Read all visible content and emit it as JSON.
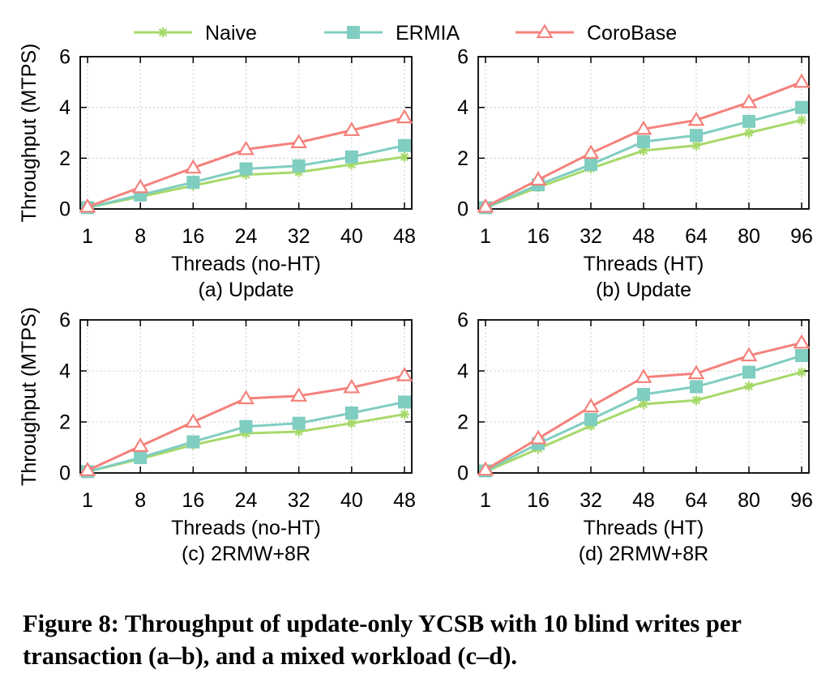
{
  "legend": [
    {
      "name": "Naive",
      "color": "#a6d96a",
      "marker": "star"
    },
    {
      "name": "ERMIA",
      "color": "#80cdc1",
      "marker": "square"
    },
    {
      "name": "CoroBase",
      "color": "#f4817b",
      "marker": "triangle"
    }
  ],
  "caption": "Figure 8: Throughput of update-only YCSB with 10 blind writes per transaction (a–b), and a mixed workload (c–d).",
  "chart_data": [
    {
      "type": "line",
      "title": "(a) Update",
      "xlabel": "Threads (no-HT)",
      "ylabel": "Throughput (MTPS)",
      "categories": [
        "1",
        "8",
        "16",
        "24",
        "32",
        "40",
        "48"
      ],
      "ylim": [
        0,
        6
      ],
      "yticks": [
        0,
        2,
        4,
        6
      ],
      "grid": true,
      "series": [
        {
          "name": "Naive",
          "values": [
            0.05,
            0.48,
            0.92,
            1.35,
            1.45,
            1.75,
            2.05
          ]
        },
        {
          "name": "ERMIA",
          "values": [
            0.05,
            0.55,
            1.05,
            1.58,
            1.7,
            2.05,
            2.5
          ]
        },
        {
          "name": "CoroBase",
          "values": [
            0.08,
            0.85,
            1.62,
            2.35,
            2.62,
            3.1,
            3.6
          ]
        }
      ]
    },
    {
      "type": "line",
      "title": "(b) Update",
      "xlabel": "Threads (HT)",
      "ylabel": "",
      "categories": [
        "1",
        "16",
        "32",
        "48",
        "64",
        "80",
        "96"
      ],
      "ylim": [
        0,
        6
      ],
      "yticks": [
        0,
        2,
        4,
        6
      ],
      "grid": true,
      "series": [
        {
          "name": "Naive",
          "values": [
            0.05,
            0.85,
            1.6,
            2.3,
            2.5,
            3.0,
            3.5
          ]
        },
        {
          "name": "ERMIA",
          "values": [
            0.05,
            0.95,
            1.75,
            2.65,
            2.9,
            3.45,
            4.0
          ]
        },
        {
          "name": "CoroBase",
          "values": [
            0.08,
            1.15,
            2.2,
            3.15,
            3.5,
            4.2,
            5.0
          ]
        }
      ]
    },
    {
      "type": "line",
      "title": "(c) 2RMW+8R",
      "xlabel": "Threads (no-HT)",
      "ylabel": "Throughput (MTPS)",
      "categories": [
        "1",
        "8",
        "16",
        "24",
        "32",
        "40",
        "48"
      ],
      "ylim": [
        0,
        6
      ],
      "yticks": [
        0,
        2,
        4,
        6
      ],
      "grid": true,
      "series": [
        {
          "name": "Naive",
          "values": [
            0.05,
            0.55,
            1.1,
            1.55,
            1.62,
            1.95,
            2.3
          ]
        },
        {
          "name": "ERMIA",
          "values": [
            0.05,
            0.6,
            1.22,
            1.82,
            1.95,
            2.35,
            2.78
          ]
        },
        {
          "name": "CoroBase",
          "values": [
            0.1,
            1.05,
            2.0,
            2.92,
            3.02,
            3.35,
            3.82
          ]
        }
      ]
    },
    {
      "type": "line",
      "title": "(d) 2RMW+8R",
      "xlabel": "Threads (HT)",
      "ylabel": "",
      "categories": [
        "1",
        "16",
        "32",
        "48",
        "64",
        "80",
        "96"
      ],
      "ylim": [
        0,
        6
      ],
      "yticks": [
        0,
        2,
        4,
        6
      ],
      "grid": true,
      "series": [
        {
          "name": "Naive",
          "values": [
            0.05,
            0.95,
            1.85,
            2.7,
            2.85,
            3.4,
            3.95
          ]
        },
        {
          "name": "ERMIA",
          "values": [
            0.08,
            1.15,
            2.1,
            3.08,
            3.38,
            3.95,
            4.6
          ]
        },
        {
          "name": "CoroBase",
          "values": [
            0.12,
            1.35,
            2.6,
            3.75,
            3.9,
            4.6,
            5.1
          ]
        }
      ]
    }
  ]
}
